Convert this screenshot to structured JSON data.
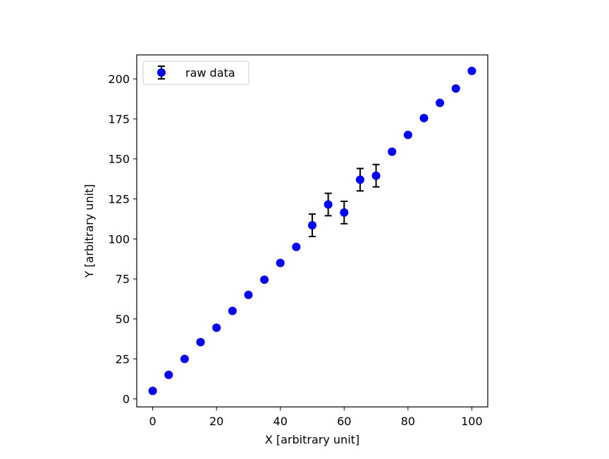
{
  "chart_data": {
    "type": "scatter",
    "title": "",
    "xlabel": "X [arbitrary unit]",
    "ylabel": "Y [arbitrary unit]",
    "xlim": [
      -5,
      105
    ],
    "ylim": [
      -5,
      215
    ],
    "xticks": [
      0,
      20,
      40,
      60,
      80,
      100
    ],
    "xtick_labels": [
      "0",
      "20",
      "40",
      "60",
      "80",
      "100"
    ],
    "yticks": [
      0,
      25,
      50,
      75,
      100,
      125,
      150,
      175,
      200
    ],
    "ytick_labels": [
      "0",
      "25",
      "50",
      "75",
      "100",
      "125",
      "150",
      "175",
      "200"
    ],
    "grid": false,
    "legend": {
      "position": "upper-left",
      "entries": [
        "raw data"
      ]
    },
    "series": [
      {
        "name": "raw data",
        "marker": "circle",
        "color": "#0000ff",
        "errorbar_color": "#000000",
        "x": [
          0,
          5,
          10,
          15,
          20,
          25,
          30,
          35,
          40,
          45,
          50,
          55,
          60,
          65,
          70,
          75,
          80,
          85,
          90,
          95,
          100
        ],
        "y": [
          5,
          15,
          25,
          35.5,
          44.5,
          55,
          65,
          74.5,
          85,
          95,
          108.5,
          121.5,
          116.5,
          137,
          139.5,
          154.5,
          165,
          175.5,
          185,
          194,
          205
        ],
        "yerr": [
          0,
          0,
          0,
          0,
          0,
          0,
          0,
          0,
          0,
          0,
          7,
          7,
          7,
          7,
          7,
          0,
          0,
          0,
          0,
          0,
          0
        ]
      }
    ]
  }
}
